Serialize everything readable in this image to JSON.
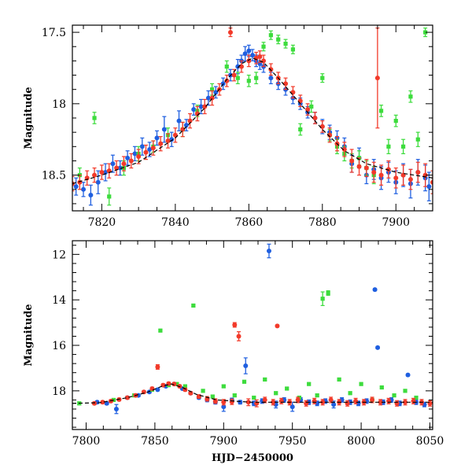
{
  "chart_data": [
    {
      "type": "scatter",
      "panel": "top",
      "title": "",
      "xlabel": "",
      "ylabel": "Magnitude",
      "xlim": [
        7812,
        7910
      ],
      "ylim": [
        18.75,
        17.45
      ],
      "y_inverted": true,
      "grid": false,
      "xticks": [
        7820,
        7840,
        7860,
        7880,
        7900
      ],
      "yticks": [
        17.5,
        18,
        18.5
      ],
      "ytick_labels": [
        "17.5",
        "18",
        "18.5"
      ],
      "colors": {
        "blue": "#1f5fe0",
        "green": "#3ddc3d",
        "red": "#f23a2a",
        "model": "#000000"
      },
      "model_curve": {
        "x": [
          7812,
          7820,
          7830,
          7840,
          7848,
          7854,
          7858,
          7861,
          7864,
          7868,
          7874,
          7880,
          7886,
          7892,
          7900,
          7910
        ],
        "y": [
          18.56,
          18.5,
          18.41,
          18.24,
          18.03,
          17.83,
          17.72,
          17.68,
          17.71,
          17.82,
          18.0,
          18.18,
          18.33,
          18.42,
          18.48,
          18.52
        ]
      },
      "series": [
        {
          "color": "blue",
          "x": [
            7813,
            7815,
            7817,
            7819,
            7821,
            7823,
            7825,
            7827,
            7829,
            7831,
            7833,
            7835,
            7837,
            7839,
            7841,
            7843,
            7845,
            7847,
            7849,
            7851,
            7853,
            7855,
            7857,
            7858,
            7859,
            7860,
            7861,
            7862,
            7863,
            7864,
            7866,
            7868,
            7870,
            7872,
            7874,
            7876,
            7878,
            7880,
            7882,
            7884,
            7886,
            7888,
            7890,
            7892,
            7894,
            7896,
            7898,
            7900,
            7902,
            7904,
            7906,
            7908,
            7909
          ],
          "y": [
            18.58,
            18.6,
            18.64,
            18.55,
            18.48,
            18.42,
            18.45,
            18.38,
            18.35,
            18.3,
            18.32,
            18.24,
            18.18,
            18.25,
            18.12,
            18.15,
            18.04,
            18.02,
            17.96,
            17.92,
            17.86,
            17.8,
            17.74,
            17.7,
            17.65,
            17.63,
            17.66,
            17.7,
            17.72,
            17.74,
            17.82,
            17.86,
            17.9,
            17.96,
            18.0,
            18.06,
            18.1,
            18.16,
            18.2,
            18.24,
            18.3,
            18.42,
            18.38,
            18.5,
            18.46,
            18.52,
            18.48,
            18.55,
            18.5,
            18.56,
            18.48,
            18.52,
            18.58
          ],
          "err": [
            0.06,
            0.05,
            0.07,
            0.08,
            0.06,
            0.06,
            0.05,
            0.05,
            0.05,
            0.06,
            0.05,
            0.05,
            0.09,
            0.05,
            0.07,
            0.04,
            0.04,
            0.05,
            0.05,
            0.04,
            0.04,
            0.04,
            0.05,
            0.04,
            0.05,
            0.04,
            0.04,
            0.04,
            0.04,
            0.04,
            0.04,
            0.04,
            0.04,
            0.04,
            0.04,
            0.04,
            0.04,
            0.05,
            0.05,
            0.05,
            0.06,
            0.06,
            0.07,
            0.06,
            0.07,
            0.08,
            0.07,
            0.08,
            0.08,
            0.1,
            0.09,
            0.09,
            0.1
          ]
        },
        {
          "color": "green",
          "x": [
            7814,
            7818,
            7822,
            7826,
            7830,
            7834,
            7838,
            7842,
            7846,
            7850,
            7854,
            7857,
            7860,
            7862,
            7864,
            7866,
            7868,
            7870,
            7872,
            7874,
            7877,
            7880,
            7882,
            7884,
            7886,
            7888,
            7890,
            7892,
            7894,
            7896,
            7898,
            7900,
            7902,
            7904,
            7906,
            7908
          ],
          "y": [
            18.5,
            18.1,
            18.65,
            18.45,
            18.35,
            18.3,
            18.22,
            18.18,
            18.05,
            17.9,
            17.74,
            17.82,
            17.84,
            17.82,
            17.6,
            17.52,
            17.55,
            17.58,
            17.62,
            18.18,
            18.02,
            17.82,
            18.22,
            18.3,
            18.35,
            18.4,
            18.38,
            18.45,
            18.5,
            18.05,
            18.3,
            18.12,
            18.3,
            17.95,
            18.25,
            17.5
          ],
          "err": [
            0.05,
            0.04,
            0.06,
            0.05,
            0.05,
            0.04,
            0.05,
            0.05,
            0.04,
            0.04,
            0.04,
            0.04,
            0.04,
            0.04,
            0.03,
            0.03,
            0.03,
            0.03,
            0.03,
            0.04,
            0.04,
            0.03,
            0.04,
            0.05,
            0.05,
            0.05,
            0.05,
            0.05,
            0.06,
            0.04,
            0.05,
            0.04,
            0.05,
            0.04,
            0.05,
            0.03
          ]
        },
        {
          "color": "red",
          "x": [
            7812,
            7814,
            7816,
            7818,
            7820,
            7822,
            7824,
            7826,
            7828,
            7830,
            7832,
            7834,
            7836,
            7838,
            7840,
            7842,
            7844,
            7846,
            7848,
            7850,
            7852,
            7854,
            7855,
            7856,
            7858,
            7860,
            7862,
            7863,
            7864,
            7866,
            7868,
            7870,
            7872,
            7874,
            7876,
            7878,
            7880,
            7882,
            7884,
            7886,
            7888,
            7890,
            7892,
            7894,
            7895,
            7896,
            7898,
            7900,
            7902,
            7904,
            7906,
            7908,
            7910
          ],
          "y": [
            18.56,
            18.55,
            18.52,
            18.5,
            18.48,
            18.47,
            18.45,
            18.42,
            18.4,
            18.37,
            18.34,
            18.31,
            18.28,
            18.26,
            18.22,
            18.18,
            18.12,
            18.07,
            18.02,
            17.96,
            17.9,
            17.84,
            17.5,
            17.8,
            17.74,
            17.7,
            17.68,
            17.67,
            17.7,
            17.76,
            17.82,
            17.86,
            17.92,
            17.98,
            18.04,
            18.1,
            18.16,
            18.22,
            18.28,
            18.32,
            18.4,
            18.44,
            18.45,
            18.48,
            17.82,
            18.5,
            18.46,
            18.52,
            18.5,
            18.53,
            18.48,
            18.5,
            18.55
          ],
          "err": [
            0.05,
            0.05,
            0.05,
            0.05,
            0.05,
            0.05,
            0.05,
            0.05,
            0.05,
            0.05,
            0.05,
            0.05,
            0.05,
            0.05,
            0.05,
            0.05,
            0.05,
            0.05,
            0.05,
            0.05,
            0.04,
            0.04,
            0.03,
            0.04,
            0.04,
            0.04,
            0.04,
            0.04,
            0.04,
            0.04,
            0.04,
            0.04,
            0.04,
            0.04,
            0.04,
            0.04,
            0.04,
            0.05,
            0.05,
            0.05,
            0.08,
            0.06,
            0.06,
            0.07,
            0.35,
            0.07,
            0.06,
            0.07,
            0.07,
            0.07,
            0.07,
            0.08,
            0.08
          ]
        }
      ]
    },
    {
      "type": "scatter",
      "panel": "bottom",
      "title": "",
      "xlabel": "HJD−2450000",
      "ylabel": "Magnitude",
      "xlim": [
        7790,
        8052
      ],
      "ylim": [
        19.7,
        11.4
      ],
      "y_inverted": true,
      "grid": false,
      "xticks": [
        7800,
        7850,
        7900,
        7950,
        8000,
        8050
      ],
      "yticks": [
        12,
        14,
        16,
        18
      ],
      "ytick_labels": [
        "12",
        "14",
        "16",
        "18"
      ],
      "colors": {
        "blue": "#1f5fe0",
        "green": "#3ddc3d",
        "red": "#f23a2a",
        "model": "#000000"
      },
      "model_curve": {
        "x": [
          7790,
          7810,
          7830,
          7845,
          7855,
          7862,
          7870,
          7880,
          7895,
          7920,
          7960,
          8000,
          8052
        ],
        "y": [
          18.55,
          18.52,
          18.3,
          18.05,
          17.8,
          17.7,
          17.85,
          18.15,
          18.4,
          18.5,
          18.5,
          18.5,
          18.5
        ]
      },
      "series": [
        {
          "color": "blue",
          "x": [
            7808,
            7815,
            7822,
            7830,
            7838,
            7846,
            7852,
            7858,
            7864,
            7870,
            7876,
            7882,
            7888,
            7894,
            7900,
            7906,
            7912,
            7916,
            7922,
            7928,
            7933,
            7938,
            7944,
            7950,
            7956,
            7962,
            7968,
            7974,
            7980,
            7986,
            7992,
            7998,
            8004,
            8010,
            8012,
            8016,
            8022,
            8028,
            8034,
            8040,
            8046
          ],
          "y": [
            18.5,
            18.55,
            18.8,
            18.3,
            18.2,
            18.05,
            17.95,
            17.8,
            17.7,
            17.9,
            18.1,
            18.3,
            18.4,
            18.5,
            18.7,
            18.4,
            18.5,
            16.9,
            18.55,
            18.45,
            11.85,
            18.6,
            18.4,
            18.7,
            18.4,
            18.5,
            18.55,
            18.45,
            18.6,
            18.4,
            18.5,
            18.55,
            18.45,
            13.55,
            16.1,
            18.5,
            18.4,
            18.55,
            17.3,
            18.5,
            18.6
          ],
          "err": [
            0.06,
            0.06,
            0.2,
            0.06,
            0.06,
            0.05,
            0.05,
            0.05,
            0.05,
            0.05,
            0.06,
            0.06,
            0.08,
            0.08,
            0.2,
            0.08,
            0.08,
            0.35,
            0.1,
            0.1,
            0.3,
            0.15,
            0.1,
            0.2,
            0.1,
            0.1,
            0.1,
            0.1,
            0.15,
            0.1,
            0.1,
            0.1,
            0.1,
            0.05,
            0.05,
            0.1,
            0.1,
            0.1,
            0.05,
            0.1,
            0.1
          ]
        },
        {
          "color": "green",
          "x": [
            7795,
            7820,
            7835,
            7848,
            7854,
            7860,
            7866,
            7872,
            7878,
            7885,
            7892,
            7900,
            7908,
            7915,
            7922,
            7930,
            7938,
            7946,
            7955,
            7962,
            7968,
            7972,
            7976,
            7984,
            7992,
            8000,
            8008,
            8015,
            8024,
            8032,
            8040
          ],
          "y": [
            18.55,
            18.4,
            18.2,
            17.95,
            15.35,
            17.75,
            17.7,
            17.8,
            14.25,
            18.0,
            18.25,
            17.8,
            18.2,
            17.6,
            18.3,
            17.5,
            18.1,
            17.9,
            18.3,
            17.7,
            18.2,
            13.95,
            13.7,
            17.5,
            18.1,
            17.7,
            18.4,
            17.85,
            18.2,
            18.0,
            18.3
          ],
          "err": [
            0.06,
            0.05,
            0.05,
            0.05,
            0.05,
            0.05,
            0.05,
            0.05,
            0.05,
            0.06,
            0.06,
            0.05,
            0.06,
            0.05,
            0.06,
            0.05,
            0.06,
            0.05,
            0.06,
            0.05,
            0.06,
            0.3,
            0.1,
            0.05,
            0.06,
            0.05,
            0.06,
            0.05,
            0.06,
            0.05,
            0.06
          ]
        },
        {
          "color": "red",
          "x": [
            7806,
            7812,
            7818,
            7824,
            7830,
            7836,
            7842,
            7848,
            7852,
            7856,
            7860,
            7864,
            7868,
            7872,
            7876,
            7882,
            7888,
            7894,
            7900,
            7906,
            7908,
            7911,
            7918,
            7924,
            7930,
            7936,
            7939,
            7942,
            7948,
            7954,
            7960,
            7966,
            7972,
            7978,
            7984,
            7990,
            7996,
            8002,
            8008,
            8014,
            8020,
            8026,
            8032,
            8038,
            8044,
            8050
          ],
          "y": [
            18.55,
            18.5,
            18.45,
            18.38,
            18.3,
            18.2,
            18.05,
            17.9,
            16.95,
            17.75,
            17.68,
            17.7,
            17.8,
            17.95,
            18.1,
            18.25,
            18.35,
            18.45,
            18.5,
            18.48,
            15.1,
            15.6,
            18.5,
            18.55,
            18.4,
            18.5,
            15.15,
            18.45,
            18.5,
            18.4,
            18.55,
            18.45,
            18.5,
            18.4,
            18.5,
            18.55,
            18.45,
            18.5,
            18.4,
            18.5,
            18.45,
            18.55,
            18.5,
            18.45,
            18.5,
            18.55
          ],
          "err": [
            0.06,
            0.06,
            0.06,
            0.06,
            0.06,
            0.06,
            0.06,
            0.06,
            0.1,
            0.06,
            0.06,
            0.06,
            0.06,
            0.06,
            0.06,
            0.08,
            0.1,
            0.1,
            0.12,
            0.12,
            0.1,
            0.2,
            0.15,
            0.15,
            0.12,
            0.12,
            0.05,
            0.12,
            0.12,
            0.12,
            0.12,
            0.12,
            0.12,
            0.12,
            0.12,
            0.12,
            0.12,
            0.12,
            0.12,
            0.12,
            0.12,
            0.12,
            0.12,
            0.12,
            0.12,
            0.12
          ]
        }
      ]
    }
  ]
}
